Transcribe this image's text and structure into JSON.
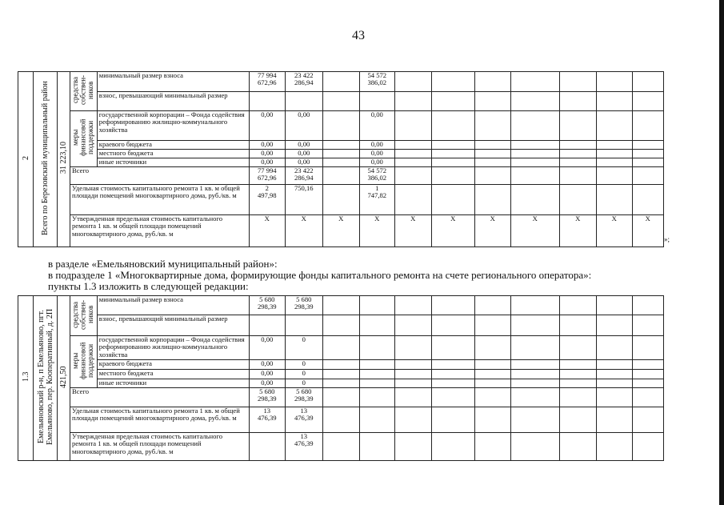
{
  "page_number": "43",
  "closing_quote": "»;",
  "paragraphs": [
    "в разделе «Емельяновский муниципальный район»:",
    "в подразделе 1 «Многоквартирные дома, формирующие фонды капитального ремонта на счете регионального оператора»:",
    "пункты 1.3 изложить в следующей редакции:"
  ],
  "tables": [
    {
      "num": "2",
      "name": "Всего по Березовский муниципальный район",
      "area": "31 223,10",
      "group_owners": "средства собствен-ников",
      "group_support": "меры финансовой поддержки",
      "rows": [
        {
          "label": "минимальный размер взноса",
          "values": [
            "77 994\n672,96",
            "23 422\n286,94",
            "",
            "54 572\n386,02",
            "",
            "",
            "",
            "",
            "",
            "",
            ""
          ]
        },
        {
          "label": "взнос, превышающий минимальный размер",
          "values": [
            "",
            "",
            "",
            "",
            "",
            "",
            "",
            "",
            "",
            "",
            ""
          ]
        },
        {
          "label": "государственной корпорации – Фонда содействия реформированию жилищно-коммунального хозяйства",
          "values": [
            "0,00",
            "0,00",
            "",
            "0,00",
            "",
            "",
            "",
            "",
            "",
            "",
            ""
          ]
        },
        {
          "label": "краевого бюджета",
          "values": [
            "0,00",
            "0,00",
            "",
            "0,00",
            "",
            "",
            "",
            "",
            "",
            "",
            ""
          ]
        },
        {
          "label": "местного бюджета",
          "values": [
            "0,00",
            "0,00",
            "",
            "0,00",
            "",
            "",
            "",
            "",
            "",
            "",
            ""
          ]
        },
        {
          "label": "иные источники",
          "values": [
            "0,00",
            "0,00",
            "",
            "0,00",
            "",
            "",
            "",
            "",
            "",
            "",
            ""
          ]
        },
        {
          "label": "Всего",
          "values": [
            "77 994\n672,96",
            "23 422\n286,94",
            "",
            "54 572\n386,02",
            "",
            "",
            "",
            "",
            "",
            "",
            ""
          ]
        },
        {
          "label": "Удельная стоимость капитального ремонта 1 кв. м общей площади помещений многоквартирного дома, руб./кв. м",
          "values": [
            "2\n497,98",
            "750,16",
            "",
            "1\n747,82",
            "",
            "",
            "",
            "",
            "",
            "",
            ""
          ]
        },
        {
          "label": "Утвержденная предельная стоимость капитального ремонта 1 кв. м общей площади помещений многоквартирного дома, руб./кв. м",
          "values": [
            "X",
            "X",
            "X",
            "X",
            "X",
            "X",
            "X",
            "X",
            "X",
            "X",
            "X"
          ]
        }
      ]
    },
    {
      "num": "1.3",
      "name": "Емельяновский р-н, п Емельяново, пгт. Емельяново, пер. Кооперативный, д. 2П",
      "area": "421,50",
      "group_owners": "средства собствен-ников",
      "group_support": "меры финансовой поддержки",
      "rows": [
        {
          "label": "минимальный размер взноса",
          "values": [
            "5 680\n298,39",
            "5 680\n298,39",
            "",
            "",
            "",
            "",
            "",
            "",
            "",
            "",
            ""
          ]
        },
        {
          "label": "взнос, превышающий минимальный размер",
          "values": [
            "",
            "",
            "",
            "",
            "",
            "",
            "",
            "",
            "",
            "",
            ""
          ]
        },
        {
          "label": "государственной корпорации – Фонда содействия реформированию жилищно-коммунального хозяйства",
          "values": [
            "0,00",
            "0",
            "",
            "",
            "",
            "",
            "",
            "",
            "",
            "",
            ""
          ]
        },
        {
          "label": "краевого бюджета",
          "values": [
            "0,00",
            "0",
            "",
            "",
            "",
            "",
            "",
            "",
            "",
            "",
            ""
          ]
        },
        {
          "label": "местного бюджета",
          "values": [
            "0,00",
            "0",
            "",
            "",
            "",
            "",
            "",
            "",
            "",
            "",
            ""
          ]
        },
        {
          "label": "иные источники",
          "values": [
            "0,00",
            "0",
            "",
            "",
            "",
            "",
            "",
            "",
            "",
            "",
            ""
          ]
        },
        {
          "label": "Всего",
          "values": [
            "5 680\n298,39",
            "5 680\n298,39",
            "",
            "",
            "",
            "",
            "",
            "",
            "",
            "",
            ""
          ]
        },
        {
          "label": "Удельная стоимость капитального ремонта 1 кв. м общей площади помещений многоквартирного дома, руб./кв. м",
          "values": [
            "13\n476,39",
            "13\n476,39",
            "",
            "",
            "",
            "",
            "",
            "",
            "",
            "",
            ""
          ]
        },
        {
          "label": "Утвержденная предельная стоимость капитального ремонта 1 кв. м общей площади помещений многоквартирного дома, руб./кв. м",
          "values": [
            "",
            "13\n476,39",
            "",
            "",
            "",
            "",
            "",
            "",
            "",
            "",
            ""
          ]
        }
      ]
    }
  ]
}
